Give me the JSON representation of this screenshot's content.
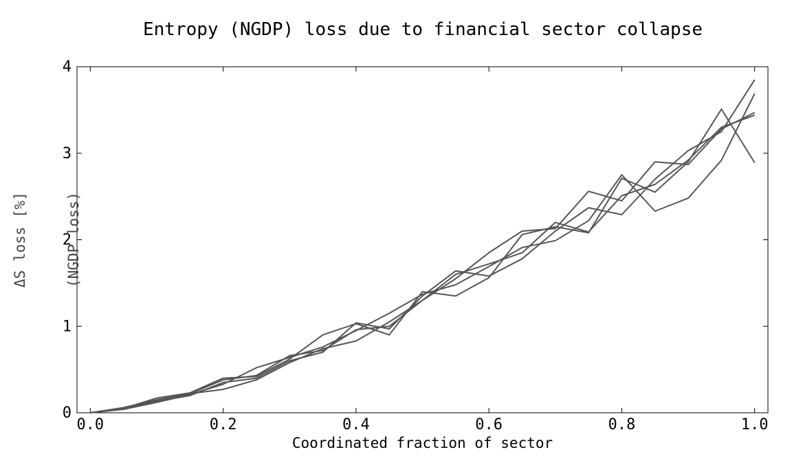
{
  "chart_data": {
    "type": "line",
    "title": "Entropy (NGDP) loss due to financial sector collapse",
    "xlabel": "Coordinated fraction of sector",
    "ylabel_lines": [
      "ΔS loss [%]",
      "(NGDP loss)"
    ],
    "xlim": [
      -0.02,
      1.02
    ],
    "ylim": [
      0,
      4
    ],
    "x_ticks": [
      0.0,
      0.2,
      0.4,
      0.6,
      0.8,
      1.0
    ],
    "x_tick_labels": [
      "0.0",
      "0.2",
      "0.4",
      "0.6",
      "0.8",
      "1.0"
    ],
    "y_ticks": [
      0,
      1,
      2,
      3,
      4
    ],
    "y_tick_labels": [
      "0",
      "1",
      "2",
      "3",
      "4"
    ],
    "grid": false,
    "line_color": "#555555",
    "x": [
      0.0,
      0.05,
      0.1,
      0.15,
      0.2,
      0.25,
      0.3,
      0.35,
      0.4,
      0.45,
      0.5,
      0.55,
      0.6,
      0.65,
      0.7,
      0.75,
      0.8,
      0.85,
      0.9,
      0.95,
      1.0
    ],
    "series": [
      {
        "values": [
          0,
          0.05,
          0.17,
          0.23,
          0.4,
          0.42,
          0.62,
          0.9,
          1.03,
          0.9,
          1.4,
          1.35,
          1.56,
          2.06,
          2.15,
          2.08,
          2.71,
          2.55,
          2.9,
          3.51,
          2.89
        ]
      },
      {
        "values": [
          0,
          0.06,
          0.15,
          0.22,
          0.27,
          0.38,
          0.58,
          0.74,
          0.83,
          1.05,
          1.3,
          1.55,
          1.85,
          2.1,
          2.13,
          2.56,
          2.45,
          2.9,
          2.87,
          3.28,
          3.47
        ]
      },
      {
        "values": [
          0,
          0.05,
          0.13,
          0.2,
          0.35,
          0.4,
          0.6,
          0.7,
          1.04,
          0.97,
          1.35,
          1.64,
          1.58,
          1.78,
          2.1,
          2.37,
          2.29,
          2.7,
          3.03,
          3.25,
          3.85
        ]
      },
      {
        "values": [
          0,
          0.04,
          0.12,
          0.21,
          0.33,
          0.52,
          0.64,
          0.76,
          0.95,
          1.15,
          1.37,
          1.48,
          1.69,
          1.91,
          1.99,
          2.22,
          2.75,
          2.33,
          2.48,
          2.92,
          3.69
        ]
      },
      {
        "values": [
          0,
          0.05,
          0.14,
          0.22,
          0.38,
          0.43,
          0.66,
          0.72,
          0.96,
          1.0,
          1.3,
          1.6,
          1.72,
          1.85,
          2.2,
          2.09,
          2.51,
          2.64,
          2.92,
          3.3,
          3.44
        ]
      }
    ]
  }
}
